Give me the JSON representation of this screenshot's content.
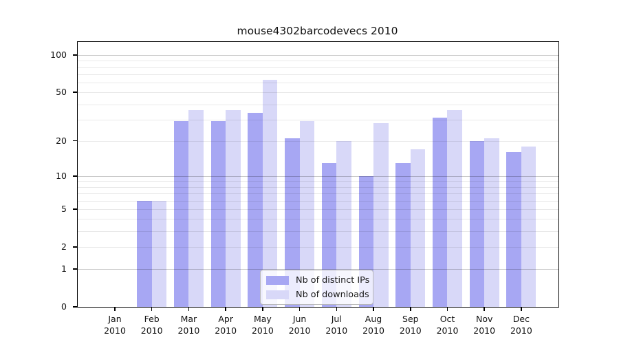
{
  "title": "mouse4302barcodevecs 2010",
  "colors": {
    "ips": "#a7a7f3",
    "downloads": "#d8d8f8",
    "axis": "#000000",
    "background": "#ffffff"
  },
  "legend": {
    "items": [
      {
        "label": "Nb of distinct IPs",
        "color_key": "ips"
      },
      {
        "label": "Nb of downloads",
        "color_key": "downloads"
      }
    ]
  },
  "y_axis": {
    "tick_values": [
      0,
      1,
      2,
      5,
      10,
      20,
      50,
      100
    ],
    "tick_labels": [
      "0",
      "1",
      "2",
      "5",
      "10",
      "20",
      "50",
      "100"
    ],
    "major_grid_values": [
      1,
      10,
      100
    ],
    "minor_grid_values": [
      2,
      3,
      4,
      5,
      6,
      7,
      8,
      9,
      20,
      30,
      40,
      50,
      60,
      70,
      80,
      90
    ]
  },
  "x_axis": {
    "year": "2010",
    "months": [
      "Jan",
      "Feb",
      "Mar",
      "Apr",
      "May",
      "Jun",
      "Jul",
      "Aug",
      "Sep",
      "Oct",
      "Nov",
      "Dec"
    ]
  },
  "chart_data": {
    "type": "bar",
    "title": "mouse4302barcodevecs 2010",
    "xlabel": "",
    "ylabel": "",
    "yscale": "log1p",
    "ylim": [
      0,
      128
    ],
    "grid": "on",
    "legend_position": "bottom-center-inside",
    "categories": [
      "Jan 2010",
      "Feb 2010",
      "Mar 2010",
      "Apr 2010",
      "May 2010",
      "Jun 2010",
      "Jul 2010",
      "Aug 2010",
      "Sep 2010",
      "Oct 2010",
      "Nov 2010",
      "Dec 2010"
    ],
    "series": [
      {
        "name": "Nb of distinct IPs",
        "color_key": "ips",
        "values": [
          0,
          6,
          29,
          29,
          34,
          21,
          13,
          10,
          13,
          31,
          20,
          16
        ]
      },
      {
        "name": "Nb of downloads",
        "color_key": "downloads",
        "values": [
          0,
          6,
          36,
          36,
          63,
          29,
          20,
          28,
          17,
          36,
          21,
          18
        ]
      }
    ]
  }
}
